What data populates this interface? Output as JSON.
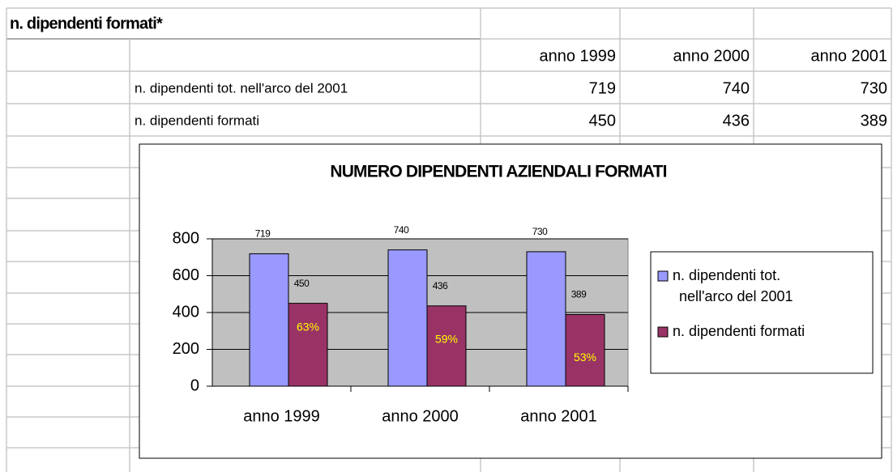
{
  "sheet": {
    "title": "n. dipendenti formati*",
    "header": [
      "anno 1999",
      "anno 2000",
      "anno 2001"
    ],
    "rows": [
      {
        "label": "n. dipendenti tot. nell'arco del 2001",
        "values": [
          719,
          740,
          730
        ]
      },
      {
        "label": "n. dipendenti formati",
        "values": [
          450,
          436,
          389
        ]
      }
    ]
  },
  "chart_data": {
    "type": "bar",
    "title": "NUMERO DIPENDENTI AZIENDALI FORMATI",
    "categories": [
      "anno 1999",
      "anno 2000",
      "anno 2001"
    ],
    "series": [
      {
        "name": "n. dipendenti tot. nell'arco del 2001",
        "color": "#9999ff",
        "values": [
          719,
          740,
          730
        ]
      },
      {
        "name": "n. dipendenti formati",
        "color": "#993366",
        "values": [
          450,
          436,
          389
        ],
        "inner_labels": [
          "63%",
          "59%",
          "53%"
        ]
      }
    ],
    "ylim": [
      0,
      800
    ],
    "yticks": [
      0,
      200,
      400,
      600,
      800
    ],
    "grid": true,
    "legend": "right"
  }
}
